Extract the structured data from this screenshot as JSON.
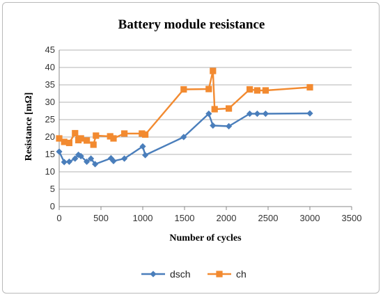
{
  "chart_data": {
    "type": "line",
    "title": "Battery module resistance",
    "xlabel": "Number of cycles",
    "ylabel": "Resistance [mΩ]",
    "xlim": [
      0,
      3500
    ],
    "ylim": [
      0,
      45
    ],
    "xticks": [
      "0",
      "500",
      "1000",
      "1500",
      "2000",
      "2500",
      "3000",
      "3500"
    ],
    "yticks": [
      "0",
      "5",
      "10",
      "15",
      "20",
      "25",
      "30",
      "35",
      "40",
      "45"
    ],
    "grid": "horizontal",
    "legend_position": "bottom",
    "series": [
      {
        "name": "dsch",
        "color": "#4a7ebb",
        "marker": "diamond",
        "x": [
          0,
          60,
          120,
          190,
          230,
          260,
          330,
          380,
          430,
          620,
          650,
          780,
          1000,
          1030,
          1490,
          1790,
          1840,
          2030,
          2280,
          2370,
          2470,
          3000
        ],
        "y": [
          15.8,
          12.8,
          12.9,
          13.8,
          14.9,
          14.5,
          12.9,
          13.8,
          12.2,
          13.9,
          13.1,
          13.8,
          17.3,
          14.8,
          20.0,
          26.7,
          23.3,
          23.1,
          26.7,
          26.7,
          26.7,
          26.8
        ]
      },
      {
        "name": "ch",
        "color": "#f28a30",
        "marker": "square",
        "x": [
          0,
          60,
          120,
          190,
          230,
          260,
          330,
          410,
          440,
          610,
          650,
          780,
          990,
          1030,
          1490,
          1790,
          1840,
          1860,
          2030,
          2280,
          2370,
          2470,
          3000
        ],
        "y": [
          19.6,
          18.6,
          18.3,
          21.1,
          19.1,
          19.6,
          19.0,
          17.8,
          20.4,
          20.2,
          19.6,
          21.0,
          21.0,
          20.7,
          33.7,
          33.8,
          39.0,
          28.0,
          28.2,
          33.7,
          33.4,
          33.4,
          34.3
        ]
      }
    ]
  }
}
